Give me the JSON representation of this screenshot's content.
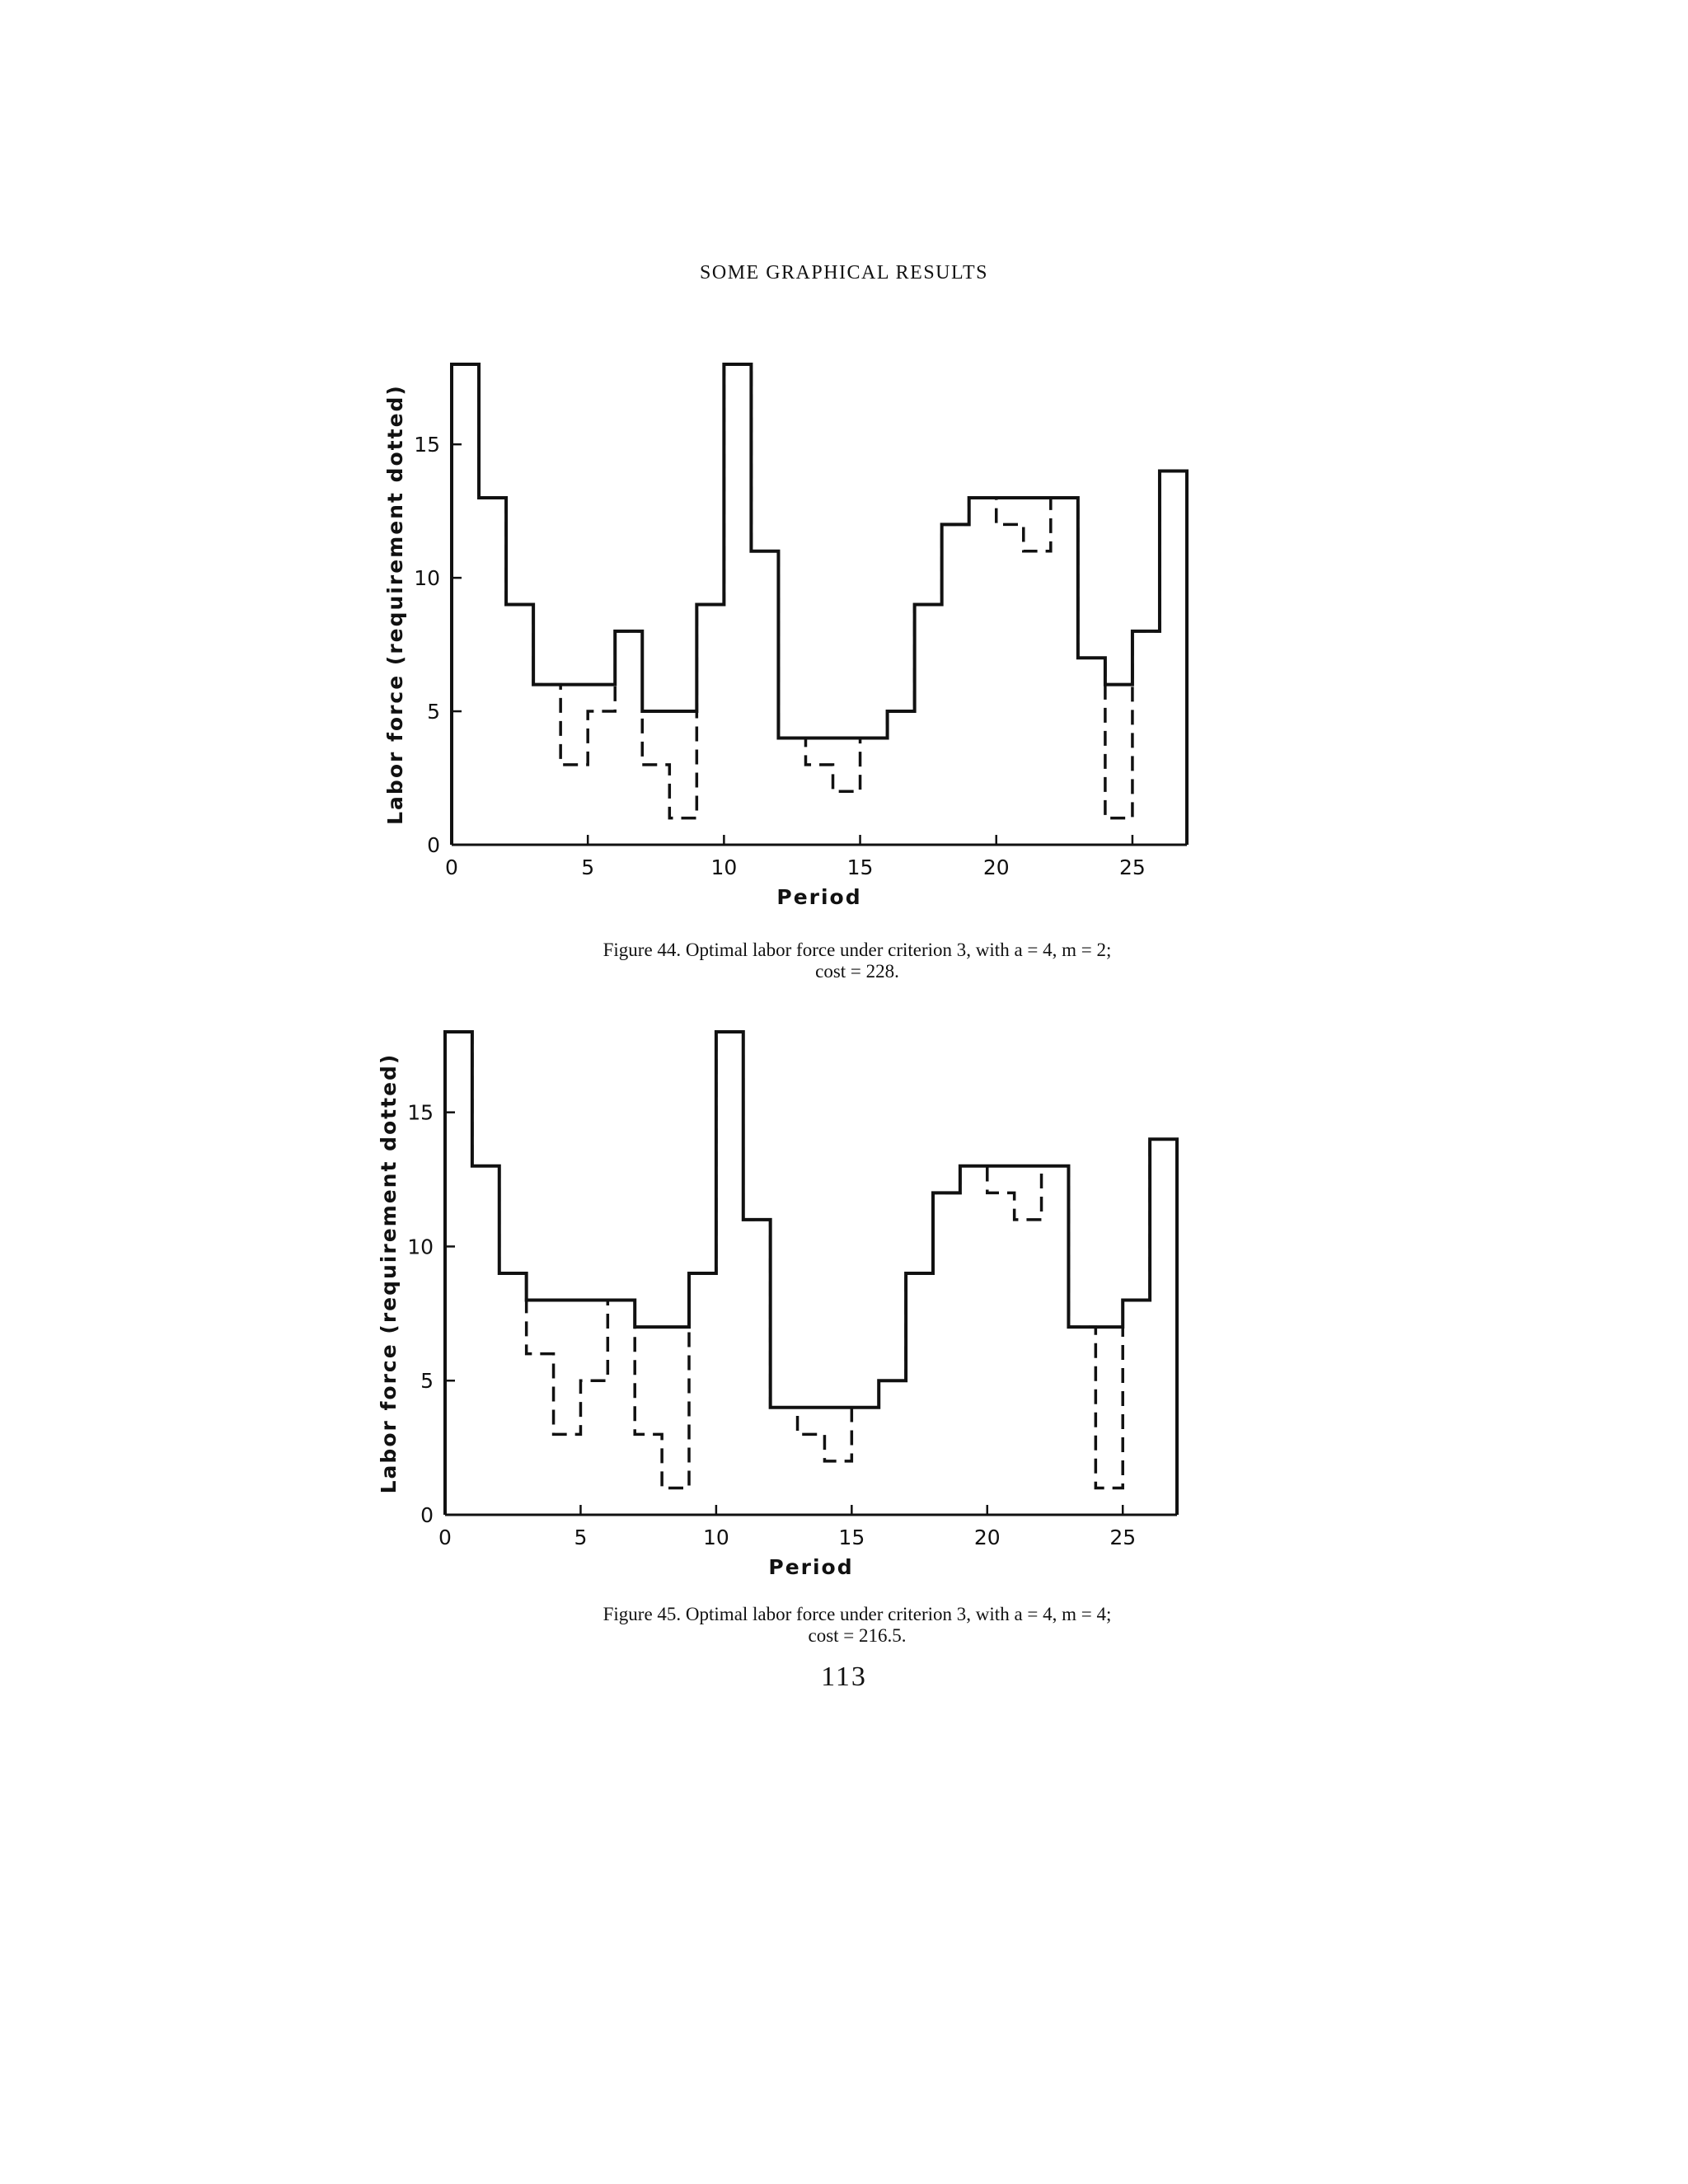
{
  "page": {
    "running_head": "SOME GRAPHICAL RESULTS",
    "page_number": "113"
  },
  "figures": [
    {
      "caption_line1": "Figure 44. Optimal labor force under criterion 3, with a = 4, m = 2;",
      "caption_line2": "cost = 228."
    },
    {
      "caption_line1": "Figure 45. Optimal labor force under criterion 3, with a = 4, m = 4;",
      "caption_line2": "cost = 216.5."
    }
  ],
  "chart_data": [
    {
      "type": "line",
      "step": true,
      "xlabel": "Period",
      "ylabel": "Labor force (requirement dotted)",
      "xlim": [
        0,
        27
      ],
      "ylim": [
        0,
        18
      ],
      "xticks": [
        0,
        5,
        10,
        15,
        20,
        25
      ],
      "yticks": [
        0,
        5,
        10,
        15
      ],
      "grid": false,
      "series": [
        {
          "line": "solid",
          "x": [
            0,
            1,
            2,
            3,
            4,
            5,
            6,
            7,
            8,
            9,
            10,
            11,
            12,
            13,
            14,
            15,
            16,
            17,
            18,
            19,
            20,
            21,
            22,
            23,
            24,
            25,
            26
          ],
          "values": [
            18,
            13,
            9,
            6,
            6,
            6,
            8,
            5,
            5,
            9,
            18,
            11,
            4,
            4,
            4,
            4,
            5,
            9,
            12,
            13,
            13,
            13,
            13,
            7,
            6,
            8,
            14
          ]
        },
        {
          "line": "dashed",
          "x": [
            0,
            1,
            2,
            3,
            4,
            5,
            6,
            7,
            8,
            9,
            10,
            11,
            12,
            13,
            14,
            15,
            16,
            17,
            18,
            19,
            20,
            21,
            22,
            23,
            24,
            25,
            26
          ],
          "values": [
            18,
            13,
            9,
            6,
            3,
            5,
            8,
            3,
            1,
            9,
            18,
            11,
            4,
            3,
            2,
            4,
            5,
            9,
            12,
            13,
            12,
            11,
            13,
            7,
            1,
            8,
            14
          ]
        }
      ]
    },
    {
      "type": "line",
      "step": true,
      "xlabel": "Period",
      "ylabel": "Labor force (requirement dotted)",
      "xlim": [
        0,
        27
      ],
      "ylim": [
        0,
        18
      ],
      "xticks": [
        0,
        5,
        10,
        15,
        20,
        25
      ],
      "yticks": [
        0,
        5,
        10,
        15
      ],
      "grid": false,
      "series": [
        {
          "line": "solid",
          "x": [
            0,
            1,
            2,
            3,
            4,
            5,
            6,
            7,
            8,
            9,
            10,
            11,
            12,
            13,
            14,
            15,
            16,
            17,
            18,
            19,
            20,
            21,
            22,
            23,
            24,
            25,
            26
          ],
          "values": [
            18,
            13,
            9,
            8,
            8,
            8,
            8,
            7,
            7,
            9,
            18,
            11,
            4,
            4,
            4,
            4,
            5,
            9,
            12,
            13,
            13,
            13,
            13,
            7,
            7,
            8,
            14
          ]
        },
        {
          "line": "dashed",
          "x": [
            0,
            1,
            2,
            3,
            4,
            5,
            6,
            7,
            8,
            9,
            10,
            11,
            12,
            13,
            14,
            15,
            16,
            17,
            18,
            19,
            20,
            21,
            22,
            23,
            24,
            25,
            26
          ],
          "values": [
            18,
            13,
            9,
            6,
            3,
            5,
            8,
            3,
            1,
            9,
            18,
            11,
            4,
            3,
            2,
            4,
            5,
            9,
            12,
            13,
            12,
            11,
            13,
            7,
            1,
            8,
            14
          ]
        }
      ]
    }
  ]
}
